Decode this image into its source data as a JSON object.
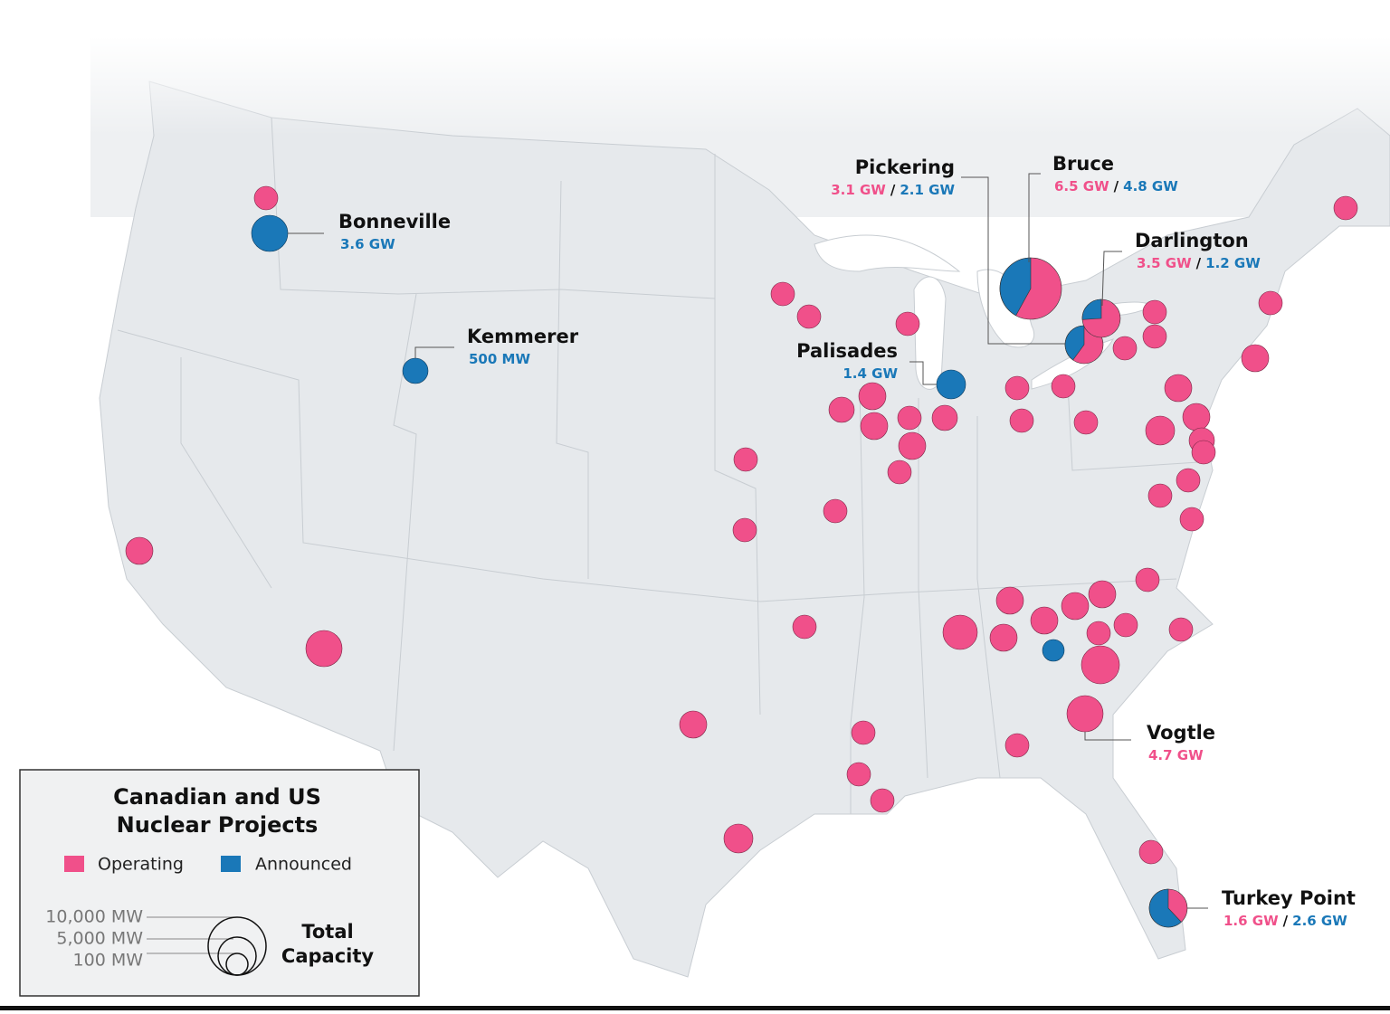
{
  "legend": {
    "title_line1": "Canadian and US",
    "title_line2": "Nuclear Projects",
    "items": [
      "Operating",
      "Announced"
    ],
    "size_labels": [
      "10,000 MW",
      "5,000 MW",
      "100 MW"
    ],
    "size_title_line1": "Total",
    "size_title_line2": "Capacity"
  },
  "separator": "/",
  "sites": [
    {
      "name": "Bonneville",
      "announced": "3.6 GW"
    },
    {
      "name": "Kemmerer",
      "announced": "500 MW"
    },
    {
      "name": "Pickering",
      "operating": "3.1 GW",
      "announced": "2.1 GW"
    },
    {
      "name": "Bruce",
      "operating": "6.5 GW",
      "announced": "4.8 GW"
    },
    {
      "name": "Darlington",
      "operating": "3.5 GW",
      "announced": "1.2 GW"
    },
    {
      "name": "Palisades",
      "announced": "1.4 GW"
    },
    {
      "name": "Vogtle",
      "operating": "4.7 GW"
    },
    {
      "name": "Turkey Point",
      "operating": "1.6 GW",
      "announced": "2.6 GW"
    }
  ]
}
